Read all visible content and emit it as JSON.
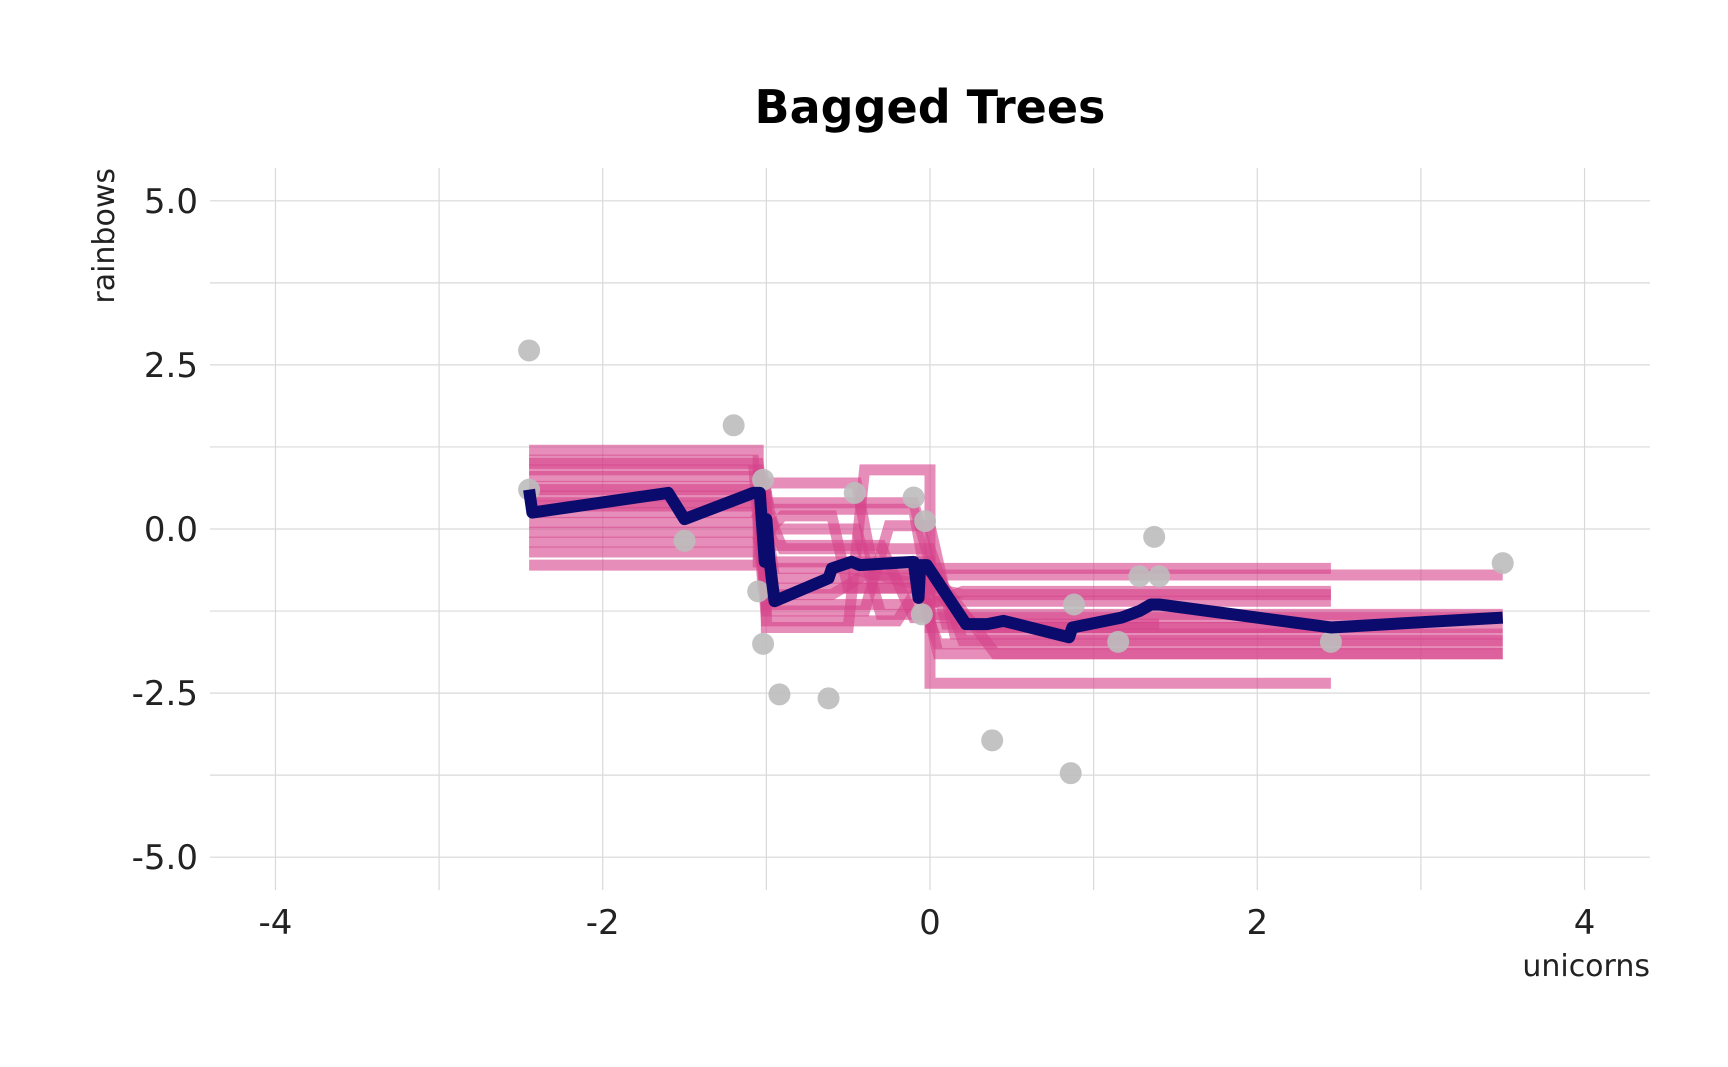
{
  "chart_data": {
    "type": "line",
    "title": "Bagged Trees",
    "xlabel": "unicorns",
    "ylabel": "rainbows",
    "xlim": [
      -4.4,
      4.4
    ],
    "ylim": [
      -5.5,
      5.5
    ],
    "x_ticks": [
      -4,
      -2,
      0,
      2,
      4
    ],
    "x_tick_labels": [
      "-4",
      "-2",
      "0",
      "2",
      "4"
    ],
    "y_ticks": [
      -5,
      -2.5,
      0,
      2.5,
      5
    ],
    "y_tick_labels": [
      "-5.0",
      "-2.5",
      "0.0",
      "2.5",
      "5.0"
    ],
    "grid": true,
    "legend": "none",
    "colors": {
      "points": "#bdbdbd",
      "bags": "#d6428a",
      "average": "#0b0b6e",
      "grid": "#d9d9d9"
    },
    "scatter_points": [
      {
        "x": -2.45,
        "y": 2.72
      },
      {
        "x": -2.45,
        "y": 0.6
      },
      {
        "x": -1.5,
        "y": -0.18
      },
      {
        "x": -1.2,
        "y": 1.58
      },
      {
        "x": -1.05,
        "y": -0.95
      },
      {
        "x": -1.02,
        "y": 0.75
      },
      {
        "x": -1.02,
        "y": -1.75
      },
      {
        "x": -0.92,
        "y": -2.52
      },
      {
        "x": -0.62,
        "y": -2.58
      },
      {
        "x": -0.46,
        "y": 0.55
      },
      {
        "x": -0.1,
        "y": 0.48
      },
      {
        "x": -0.03,
        "y": 0.12
      },
      {
        "x": -0.05,
        "y": -1.3
      },
      {
        "x": 0.38,
        "y": -3.22
      },
      {
        "x": 0.86,
        "y": -3.72
      },
      {
        "x": 0.88,
        "y": -1.15
      },
      {
        "x": 1.15,
        "y": -1.72
      },
      {
        "x": 1.28,
        "y": -0.72
      },
      {
        "x": 1.37,
        "y": -0.12
      },
      {
        "x": 1.4,
        "y": -0.72
      },
      {
        "x": 2.45,
        "y": -1.72
      },
      {
        "x": 3.5,
        "y": -0.52
      }
    ],
    "bagged_trees": [
      {
        "name": "",
        "x": [
          -2.45,
          -1.05,
          -1.05,
          0.0,
          0.0,
          2.45
        ],
        "y": [
          1.2,
          1.2,
          -0.5,
          -0.5,
          -1.5,
          -1.5
        ]
      },
      {
        "name": "",
        "x": [
          -2.45,
          -1.08,
          -1.02,
          -0.05,
          0.05,
          3.5
        ],
        "y": [
          1.05,
          1.05,
          -0.9,
          -0.9,
          -1.9,
          -1.9
        ]
      },
      {
        "name": "",
        "x": [
          -2.45,
          -1.05,
          -0.95,
          -0.45,
          -0.3,
          3.5
        ],
        "y": [
          0.9,
          0.9,
          0.0,
          0.0,
          -1.3,
          -1.3
        ]
      },
      {
        "name": "",
        "x": [
          -2.45,
          -1.02,
          -0.98,
          -0.1,
          0.0,
          2.45
        ],
        "y": [
          0.8,
          0.8,
          0.3,
          0.3,
          -1.1,
          -1.1
        ]
      },
      {
        "name": "",
        "x": [
          -2.45,
          -1.05,
          -0.9,
          0.0,
          0.2,
          3.5
        ],
        "y": [
          0.6,
          0.6,
          -0.3,
          -0.3,
          -1.7,
          -1.7
        ]
      },
      {
        "name": "",
        "x": [
          -2.45,
          -1.0,
          -1.0,
          -0.5,
          -0.4,
          0.0,
          0.0,
          2.45
        ],
        "y": [
          0.5,
          0.5,
          -1.5,
          -1.5,
          0.9,
          0.9,
          -2.35,
          -2.35
        ]
      },
      {
        "name": "",
        "x": [
          -2.45,
          -1.05,
          -1.0,
          -0.4,
          -0.25,
          0.0,
          0.15,
          3.5
        ],
        "y": [
          0.4,
          0.4,
          -1.25,
          -1.25,
          0.05,
          0.05,
          -1.6,
          -1.6
        ]
      },
      {
        "name": "",
        "x": [
          -2.45,
          -1.05,
          -1.0,
          -0.6,
          -0.4,
          3.5
        ],
        "y": [
          0.25,
          0.25,
          -1.0,
          -1.0,
          -0.7,
          -0.7
        ]
      },
      {
        "name": "",
        "x": [
          -2.45,
          -1.08,
          -1.0,
          -0.1,
          0.1,
          1.4
        ],
        "y": [
          0.1,
          0.1,
          0.4,
          0.4,
          -1.45,
          -1.45
        ]
      },
      {
        "name": "",
        "x": [
          -2.45,
          -1.06,
          -1.0,
          -0.5,
          0.2,
          2.45
        ],
        "y": [
          -0.05,
          -0.05,
          -0.6,
          -0.6,
          -1.0,
          -1.0
        ]
      },
      {
        "name": "",
        "x": [
          -2.45,
          -1.05,
          -0.9,
          -0.6,
          -0.5,
          0.0,
          0.3,
          3.5
        ],
        "y": [
          -0.2,
          -0.2,
          0.2,
          0.2,
          -0.9,
          -0.9,
          -1.5,
          -1.5
        ]
      },
      {
        "name": "",
        "x": [
          -2.45,
          -1.03,
          -1.0,
          -0.2,
          0.0,
          2.45
        ],
        "y": [
          -0.35,
          -0.35,
          -1.4,
          -1.4,
          -0.6,
          -0.6
        ]
      },
      {
        "name": "",
        "x": [
          -2.45,
          -1.05,
          -1.0,
          -0.45,
          -0.35,
          0.0,
          0.4,
          3.5
        ],
        "y": [
          -0.55,
          -0.55,
          0.7,
          0.7,
          -0.6,
          -0.6,
          -1.9,
          -1.9
        ]
      },
      {
        "name": "",
        "x": [
          -2.45,
          -1.05,
          -1.0,
          0.0,
          0.2,
          2.45
        ],
        "y": [
          0.65,
          0.65,
          -1.15,
          -1.15,
          -0.95,
          -0.95
        ]
      },
      {
        "name": "",
        "x": [
          -2.45,
          -1.05,
          -0.95,
          -0.3,
          -0.1,
          3.5
        ],
        "y": [
          0.35,
          0.35,
          -0.25,
          -0.25,
          -1.35,
          -1.35
        ]
      },
      {
        "name": "",
        "x": [
          -2.45,
          -1.05,
          -0.95,
          -0.1,
          0.05,
          3.5
        ],
        "y": [
          1.0,
          1.0,
          -0.75,
          -0.75,
          -1.75,
          -1.75
        ]
      }
    ],
    "average": {
      "name": "",
      "x": [
        -2.45,
        -2.43,
        -1.6,
        -1.5,
        -1.08,
        -1.04,
        -1.01,
        -1.0,
        -0.98,
        -0.95,
        -0.62,
        -0.6,
        -0.48,
        -0.43,
        -0.1,
        -0.07,
        -0.06,
        -0.02,
        0.22,
        0.35,
        0.45,
        0.85,
        0.87,
        1.17,
        1.28,
        1.35,
        1.4,
        2.45,
        3.5
      ],
      "y": [
        0.6,
        0.25,
        0.55,
        0.15,
        0.55,
        0.55,
        -0.5,
        0.15,
        -0.5,
        -1.1,
        -0.75,
        -0.6,
        -0.5,
        -0.55,
        -0.5,
        -1.05,
        -0.55,
        -0.55,
        -1.45,
        -1.45,
        -1.4,
        -1.65,
        -1.5,
        -1.35,
        -1.25,
        -1.15,
        -1.15,
        -1.5,
        -1.35
      ]
    }
  }
}
